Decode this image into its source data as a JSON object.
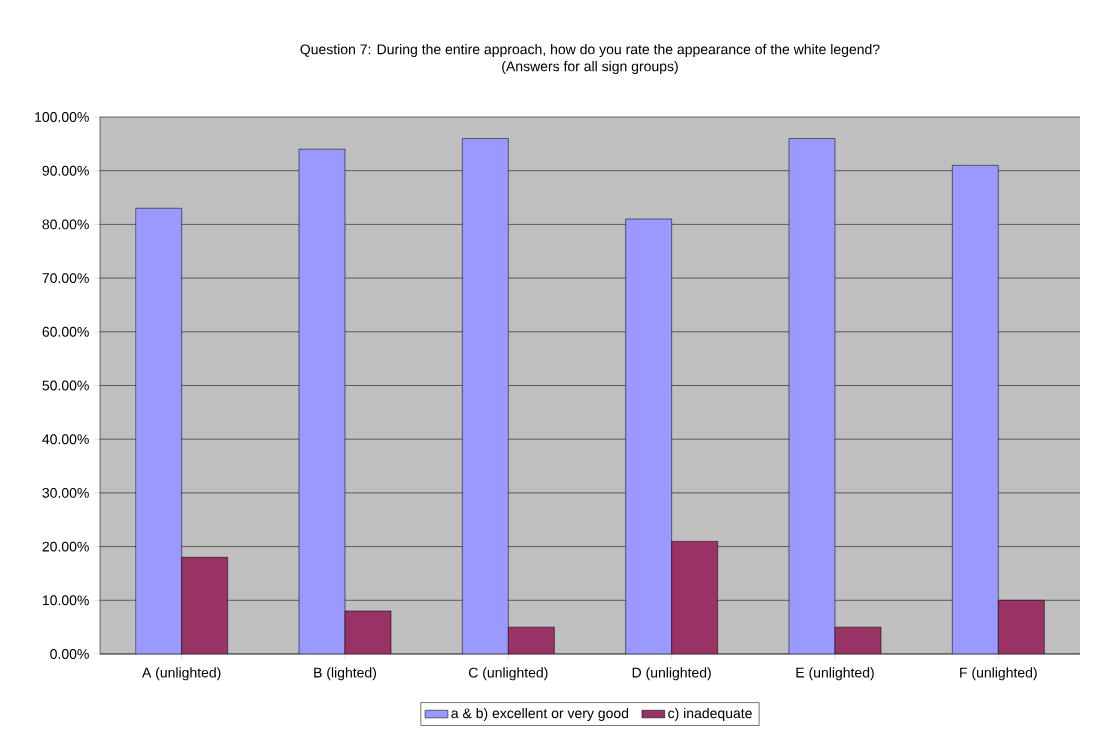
{
  "chart_data": {
    "type": "bar",
    "title": "Question 7: During the entire approach, how do you rate the appearance of the white legend?",
    "subtitle": "(Answers for all sign groups)",
    "categories": [
      "A (unlighted)",
      "B (lighted)",
      "C (unlighted)",
      "D (unlighted)",
      "E (unlighted)",
      "F (unlighted)"
    ],
    "series": [
      {
        "name": "a & b) excellent or very good",
        "color": "#9999ff",
        "values": [
          83,
          94,
          96,
          81,
          96,
          91
        ]
      },
      {
        "name": "c) inadequate",
        "color": "#993366",
        "values": [
          18,
          8,
          5,
          21,
          5,
          10
        ]
      }
    ],
    "ylim": [
      0,
      100
    ],
    "yticks": [
      {
        "value": 0,
        "label": "0.00%"
      },
      {
        "value": 10,
        "label": "10.00%"
      },
      {
        "value": 20,
        "label": "20.00%"
      },
      {
        "value": 30,
        "label": "30.00%"
      },
      {
        "value": 40,
        "label": "40.00%"
      },
      {
        "value": 50,
        "label": "50.00%"
      },
      {
        "value": 60,
        "label": "60.00%"
      },
      {
        "value": 70,
        "label": "70.00%"
      },
      {
        "value": 80,
        "label": "80.00%"
      },
      {
        "value": 90,
        "label": "90.00%"
      },
      {
        "value": 100,
        "label": "100.00%"
      }
    ],
    "grid": "y",
    "legend": "bottom"
  }
}
